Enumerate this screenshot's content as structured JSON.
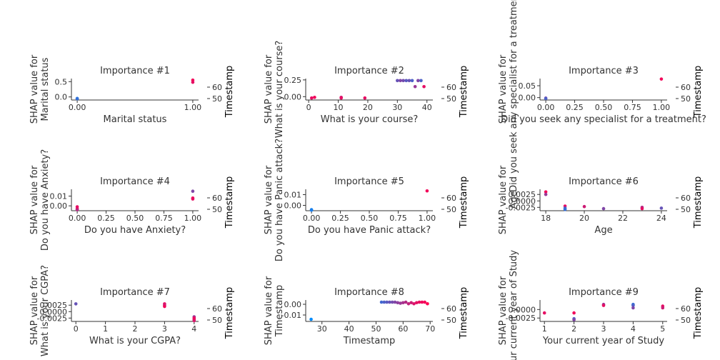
{
  "chart_data": [
    {
      "type": "scatter",
      "title": "Importance #1",
      "xlabel": "Marital status",
      "ylabel": [
        "SHAP value for",
        "Marital status"
      ],
      "colorbar_label": "Timestamp",
      "colorbar_ticks": [
        60,
        50
      ],
      "xlim": [
        -0.05,
        1.05
      ],
      "ylim": [
        -0.1,
        0.6
      ],
      "xticks": [
        {
          "v": 0,
          "t": "0.00"
        },
        {
          "v": 1,
          "t": "1.00"
        }
      ],
      "yticks": [
        {
          "v": 0,
          "t": "0.0"
        },
        {
          "v": 0.5,
          "t": "0.5"
        }
      ],
      "points": [
        [
          0,
          -0.05,
          0.1
        ],
        [
          0,
          -0.06,
          0.2
        ],
        [
          1,
          0.55,
          0.95
        ],
        [
          1,
          0.48,
          0.9
        ]
      ]
    },
    {
      "type": "scatter",
      "title": "Importance #2",
      "xlabel": "What is your course?",
      "ylabel": [
        "SHAP value for",
        "What is your course?"
      ],
      "colorbar_label": "Timestamp",
      "colorbar_ticks": [
        60,
        50
      ],
      "xlim": [
        -1,
        42
      ],
      "ylim": [
        -0.05,
        0.27
      ],
      "xticks": [
        {
          "v": 0,
          "t": "0"
        },
        {
          "v": 10,
          "t": "10"
        },
        {
          "v": 20,
          "t": "20"
        },
        {
          "v": 30,
          "t": "30"
        },
        {
          "v": 40,
          "t": "40"
        }
      ],
      "yticks": [
        {
          "v": 0,
          "t": "0.00"
        },
        {
          "v": 0.25,
          "t": "0.25"
        }
      ],
      "points": [
        [
          1,
          -0.02,
          0.9
        ],
        [
          2,
          -0.01,
          0.95
        ],
        [
          11,
          -0.01,
          0.8
        ],
        [
          11,
          -0.02,
          0.9
        ],
        [
          19,
          -0.02,
          0.9
        ],
        [
          30,
          0.24,
          0.4
        ],
        [
          31,
          0.24,
          0.5
        ],
        [
          32,
          0.24,
          0.45
        ],
        [
          33,
          0.24,
          0.35
        ],
        [
          34,
          0.24,
          0.4
        ],
        [
          35,
          0.24,
          0.3
        ],
        [
          36,
          0.15,
          0.6
        ],
        [
          37,
          0.24,
          0.5
        ],
        [
          38,
          0.24,
          0.3
        ],
        [
          39,
          0.15,
          0.9
        ]
      ]
    },
    {
      "type": "scatter",
      "title": "Importance #3",
      "xlabel": "Did you seek any specialist for a treatment?",
      "ylabel": [
        "SHAP value for",
        "Did you seek any specialist for a treatment?"
      ],
      "colorbar_label": "Timestamp",
      "colorbar_ticks": [
        60,
        50
      ],
      "xlim": [
        -0.05,
        1.05
      ],
      "ylim": [
        -0.01,
        0.08
      ],
      "xticks": [
        {
          "v": 0,
          "t": "0.00"
        },
        {
          "v": 0.25,
          "t": "0.25"
        },
        {
          "v": 0.5,
          "t": "0.50"
        },
        {
          "v": 0.75,
          "t": "0.75"
        },
        {
          "v": 1,
          "t": "1.00"
        }
      ],
      "yticks": [
        {
          "v": 0,
          "t": "0.00"
        },
        {
          "v": 0.05,
          "t": "0.05"
        }
      ],
      "points": [
        [
          0,
          -0.002,
          0.5
        ],
        [
          0,
          -0.004,
          0.3
        ],
        [
          1,
          0.078,
          0.95
        ]
      ]
    },
    {
      "type": "scatter",
      "title": "Importance #4",
      "xlabel": "Do you have Anxiety?",
      "ylabel": [
        "SHAP value for",
        "Do you have Anxiety?"
      ],
      "colorbar_label": "Timestamp",
      "colorbar_ticks": [
        60,
        50
      ],
      "xlim": [
        -0.05,
        1.05
      ],
      "ylim": [
        -0.005,
        0.017
      ],
      "xticks": [
        {
          "v": 0,
          "t": "0.00"
        },
        {
          "v": 0.25,
          "t": "0.25"
        },
        {
          "v": 0.5,
          "t": "0.50"
        },
        {
          "v": 0.75,
          "t": "0.75"
        },
        {
          "v": 1,
          "t": "1.00"
        }
      ],
      "yticks": [
        {
          "v": 0,
          "t": "0.00"
        },
        {
          "v": 0.01,
          "t": "0.01"
        }
      ],
      "points": [
        [
          0,
          -0.001,
          0.9
        ],
        [
          0,
          -0.003,
          0.95
        ],
        [
          0,
          -0.004,
          0.7
        ],
        [
          1,
          0.015,
          0.5
        ],
        [
          1,
          0.008,
          0.95
        ],
        [
          1,
          0.007,
          0.9
        ]
      ]
    },
    {
      "type": "scatter",
      "title": "Importance #5",
      "xlabel": "Do you have Panic attack?",
      "ylabel": [
        "SHAP value for",
        "Do you have Panic attack?"
      ],
      "colorbar_label": "Timestamp",
      "colorbar_ticks": [
        60,
        50
      ],
      "xlim": [
        -0.05,
        1.05
      ],
      "ylim": [
        -0.005,
        0.015
      ],
      "xticks": [
        {
          "v": 0,
          "t": "0.00"
        },
        {
          "v": 0.25,
          "t": "0.25"
        },
        {
          "v": 0.5,
          "t": "0.50"
        },
        {
          "v": 0.75,
          "t": "0.75"
        },
        {
          "v": 1,
          "t": "1.00"
        }
      ],
      "yticks": [
        {
          "v": 0,
          "t": "0.00"
        },
        {
          "v": 0.01,
          "t": "0.01"
        }
      ],
      "points": [
        [
          0,
          -0.004,
          0.05
        ],
        [
          0,
          -0.0045,
          0.1
        ],
        [
          1,
          0.0135,
          0.95
        ]
      ]
    },
    {
      "type": "scatter",
      "title": "Importance #6",
      "xlabel": "Age",
      "ylabel": [
        "SHAP value for",
        "Age"
      ],
      "colorbar_label": "Timestamp",
      "colorbar_ticks": [
        60,
        50
      ],
      "xlim": [
        17.7,
        24.3
      ],
      "ylim": [
        -0.0038,
        0.0045
      ],
      "xticks": [
        {
          "v": 18,
          "t": "18"
        },
        {
          "v": 20,
          "t": "20"
        },
        {
          "v": 22,
          "t": "22"
        },
        {
          "v": 24,
          "t": "24"
        }
      ],
      "yticks": [
        {
          "v": 0.0025,
          "t": "0.0025"
        },
        {
          "v": 0,
          "t": "0.0000"
        },
        {
          "v": -0.0025,
          "t": "-0.0025"
        }
      ],
      "points": [
        [
          18,
          0.0035,
          0.95
        ],
        [
          18,
          0.0025,
          0.6
        ],
        [
          19,
          -0.002,
          0.9
        ],
        [
          19,
          -0.0028,
          0.3
        ],
        [
          19,
          -0.0033,
          0.2
        ],
        [
          20,
          -0.0022,
          0.8
        ],
        [
          21,
          -0.003,
          0.5
        ],
        [
          23,
          -0.0025,
          0.7
        ],
        [
          23,
          -0.003,
          0.9
        ],
        [
          24,
          -0.0028,
          0.4
        ]
      ]
    },
    {
      "type": "scatter",
      "title": "Importance #7",
      "xlabel": "What is your CGPA?",
      "ylabel": [
        "SHAP value for",
        "What is your CGPA?"
      ],
      "colorbar_label": "Timestamp",
      "colorbar_ticks": [
        60,
        50
      ],
      "xlim": [
        -0.15,
        4.15
      ],
      "ylim": [
        -0.0038,
        0.0045
      ],
      "xticks": [
        {
          "v": 0,
          "t": "0"
        },
        {
          "v": 1,
          "t": "1"
        },
        {
          "v": 2,
          "t": "2"
        },
        {
          "v": 3,
          "t": "3"
        },
        {
          "v": 4,
          "t": "4"
        }
      ],
      "yticks": [
        {
          "v": 0.0025,
          "t": "0.0025"
        },
        {
          "v": 0,
          "t": "0.0000"
        },
        {
          "v": -0.0025,
          "t": "-0.0025"
        }
      ],
      "points": [
        [
          0,
          0.003,
          0.4
        ],
        [
          3,
          0.003,
          0.9
        ],
        [
          3,
          0.0025,
          0.8
        ],
        [
          3,
          0.002,
          0.95
        ],
        [
          4,
          -0.002,
          0.6
        ],
        [
          4,
          -0.0025,
          0.9
        ],
        [
          4,
          -0.003,
          0.95
        ],
        [
          4,
          -0.0035,
          0.85
        ]
      ]
    },
    {
      "type": "scatter",
      "title": "Importance #8",
      "xlabel": "Timestamp",
      "ylabel": [
        "SHAP value for",
        "Timestamp"
      ],
      "colorbar_label": "Timestamp",
      "colorbar_ticks": [
        60,
        50
      ],
      "xlim": [
        24,
        71
      ],
      "ylim": [
        -0.016,
        0.004
      ],
      "xticks": [
        {
          "v": 30,
          "t": "30"
        },
        {
          "v": 40,
          "t": "40"
        },
        {
          "v": 50,
          "t": "50"
        },
        {
          "v": 60,
          "t": "60"
        },
        {
          "v": 70,
          "t": "70"
        }
      ],
      "yticks": [
        {
          "v": 0,
          "t": "0.00"
        },
        {
          "v": -0.01,
          "t": "-0.01"
        }
      ],
      "points": [
        [
          26,
          -0.014,
          0.0
        ],
        [
          52,
          0.002,
          0.25
        ],
        [
          53,
          0.002,
          0.3
        ],
        [
          54,
          0.002,
          0.35
        ],
        [
          55,
          0.002,
          0.4
        ],
        [
          56,
          0.002,
          0.45
        ],
        [
          57,
          0.002,
          0.5
        ],
        [
          58,
          0.0015,
          0.55
        ],
        [
          59,
          0.001,
          0.6
        ],
        [
          60,
          0.0015,
          0.65
        ],
        [
          61,
          0.002,
          0.7
        ],
        [
          62,
          0.0005,
          0.75
        ],
        [
          63,
          0.0015,
          0.8
        ],
        [
          64,
          0.0005,
          0.85
        ],
        [
          65,
          0.0015,
          0.9
        ],
        [
          66,
          0.002,
          0.92
        ],
        [
          67,
          0.002,
          0.94
        ],
        [
          68,
          0.002,
          0.96
        ],
        [
          69,
          0.0005,
          1.0
        ]
      ]
    },
    {
      "type": "scatter",
      "title": "Importance #9",
      "xlabel": "Your current year of Study",
      "ylabel": [
        "SHAP value for",
        "Your current year of Study"
      ],
      "colorbar_label": "Timestamp",
      "colorbar_ticks": [
        60,
        50
      ],
      "xlim": [
        0.85,
        5.15
      ],
      "ylim": [
        -0.0035,
        0.0028
      ],
      "xticks": [
        {
          "v": 1,
          "t": "1"
        },
        {
          "v": 2,
          "t": "2"
        },
        {
          "v": 3,
          "t": "3"
        },
        {
          "v": 4,
          "t": "4"
        },
        {
          "v": 5,
          "t": "5"
        }
      ],
      "yticks": [
        {
          "v": 0,
          "t": "0.0000"
        },
        {
          "v": -0.0025,
          "t": "-0.0025"
        }
      ],
      "points": [
        [
          1,
          -0.001,
          0.9
        ],
        [
          2,
          -0.001,
          0.95
        ],
        [
          2,
          -0.0027,
          0.3
        ],
        [
          2,
          -0.003,
          0.5
        ],
        [
          3,
          0.0015,
          0.6
        ],
        [
          3,
          0.0012,
          0.9
        ],
        [
          4,
          0.0015,
          0.2
        ],
        [
          4,
          0.0012,
          0.3
        ],
        [
          4,
          0.0005,
          0.5
        ],
        [
          5,
          0.001,
          0.9
        ],
        [
          5,
          0.0005,
          0.8
        ]
      ]
    }
  ]
}
